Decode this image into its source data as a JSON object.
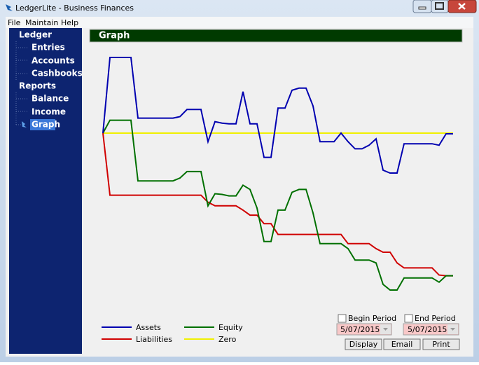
{
  "window": {
    "title": "LedgerLite - Business Finances"
  },
  "menu": [
    "File",
    "Maintain",
    "Help"
  ],
  "nav": [
    {
      "label": "Ledger",
      "items": [
        "Entries",
        "Accounts",
        "Cashbooks"
      ]
    },
    {
      "label": "Reports",
      "items": [
        "Balance",
        "Income",
        "Graph"
      ]
    }
  ],
  "header": {
    "title": "Graph"
  },
  "chart_data": {
    "type": "line",
    "series": [
      {
        "name": "Assets",
        "color": "#0000b0",
        "values": [
          0,
          106,
          106,
          106,
          106,
          21,
          21,
          21,
          21,
          21,
          21,
          23,
          33,
          33,
          33,
          -12,
          16,
          14,
          13,
          13,
          58,
          13,
          13,
          -34,
          -34,
          35,
          35,
          60,
          63,
          63,
          38,
          -12,
          -12,
          -12,
          0,
          -12,
          -22,
          -22,
          -17,
          -8,
          -52,
          -56,
          -56,
          -15,
          -15,
          -15,
          -15,
          -15,
          -17,
          -1,
          -1
        ]
      },
      {
        "name": "Liabilities",
        "color": "#d00000",
        "values": [
          0,
          -87,
          -87,
          -87,
          -87,
          -87,
          -87,
          -87,
          -87,
          -87,
          -87,
          -87,
          -87,
          -87,
          -87,
          -97,
          -102,
          -102,
          -102,
          -102,
          -108,
          -115,
          -115,
          -127,
          -127,
          -142,
          -142,
          -142,
          -142,
          -142,
          -142,
          -142,
          -142,
          -142,
          -142,
          -155,
          -155,
          -155,
          -155,
          -162,
          -167,
          -167,
          -182,
          -189,
          -189,
          -189,
          -189,
          -189,
          -199,
          -200,
          -200
        ]
      },
      {
        "name": "Equity",
        "color": "#007000",
        "values": [
          0,
          18,
          18,
          18,
          18,
          -67,
          -67,
          -67,
          -67,
          -67,
          -67,
          -63,
          -54,
          -54,
          -54,
          -102,
          -85,
          -86,
          -88,
          -88,
          -73,
          -79,
          -105,
          -152,
          -152,
          -108,
          -108,
          -83,
          -79,
          -79,
          -112,
          -155,
          -155,
          -155,
          -155,
          -162,
          -178,
          -178,
          -178,
          -182,
          -212,
          -220,
          -220,
          -203,
          -203,
          -203,
          -203,
          -203,
          -209,
          -200,
          -200
        ]
      },
      {
        "name": "Zero",
        "color": "#f0f000",
        "values": [
          0,
          0,
          0,
          0,
          0,
          0,
          0,
          0,
          0,
          0,
          0,
          0,
          0,
          0,
          0,
          0,
          0,
          0,
          0,
          0,
          0,
          0,
          0,
          0,
          0,
          0,
          0,
          0,
          0,
          0,
          0,
          0,
          0,
          0,
          0,
          0,
          0,
          0,
          0,
          0,
          0,
          0,
          0,
          0,
          0,
          0,
          0,
          0,
          0,
          0,
          0
        ]
      }
    ]
  },
  "controls": {
    "begin_period": {
      "label": "Begin Period",
      "date": "5/07/2015"
    },
    "end_period": {
      "label": "End Period",
      "date": "5/07/2015"
    },
    "buttons": [
      "Display",
      "Email",
      "Print"
    ]
  }
}
